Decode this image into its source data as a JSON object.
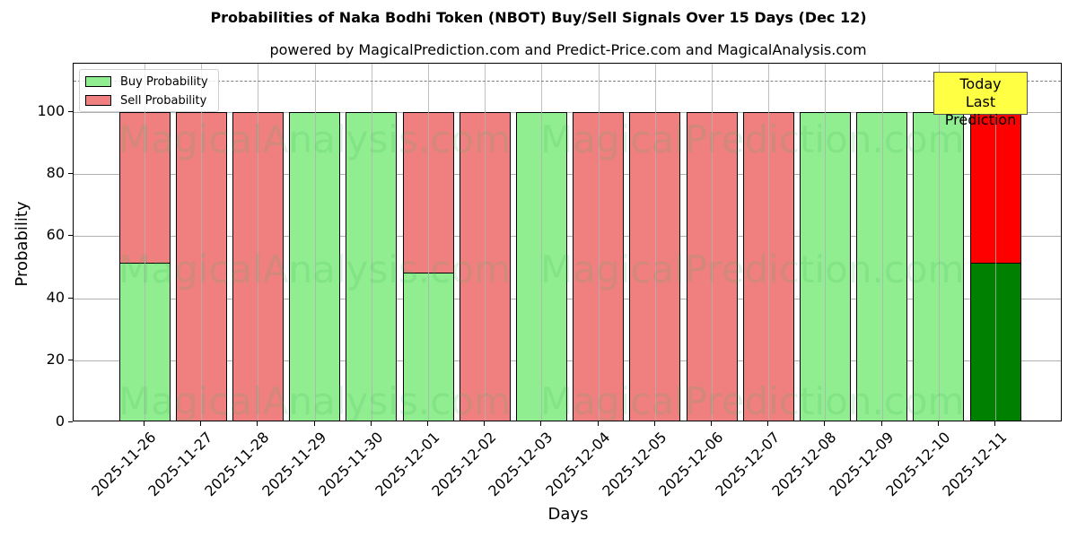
{
  "title": "Probabilities of Naka Bodhi Token (NBOT) Buy/Sell Signals Over 15 Days (Dec 12)",
  "subtitle": "powered by MagicalPrediction.com and Predict-Price.com and MagicalAnalysis.com",
  "watermarks": [
    "MagicalAnalysis.com",
    "MagicalPrediction.com"
  ],
  "annotation": {
    "line1": "Today",
    "line2": "Last Prediction"
  },
  "colors": {
    "buy": "#90ee90",
    "sell": "#f08080",
    "buy_today": "#008000",
    "sell_today": "#ff0000",
    "annotation_bg": "#ffff44"
  },
  "chart_data": {
    "type": "bar",
    "stacked": true,
    "title": "Probabilities of Naka Bodhi Token (NBOT) Buy/Sell Signals Over 15 Days (Dec 12)",
    "subtitle": "powered by MagicalPrediction.com and Predict-Price.com and MagicalAnalysis.com",
    "xlabel": "Days",
    "ylabel": "Probability",
    "ylim": [
      0,
      115.6
    ],
    "yticks": [
      0,
      20,
      40,
      60,
      80,
      100
    ],
    "grid": true,
    "legend_position": "upper left",
    "reference_line": {
      "y": 110,
      "style": "dashed",
      "color": "#808080"
    },
    "categories": [
      "2025-11-26",
      "2025-11-27",
      "2025-11-28",
      "2025-11-29",
      "2025-11-30",
      "2025-12-01",
      "2025-12-02",
      "2025-12-03",
      "2025-12-04",
      "2025-12-05",
      "2025-12-06",
      "2025-12-07",
      "2025-12-08",
      "2025-12-09",
      "2025-12-10",
      "2025-12-11"
    ],
    "series": [
      {
        "name": "Buy Probability",
        "values": [
          51.3,
          0,
          0,
          100,
          100,
          48.4,
          0,
          100,
          0,
          0,
          0,
          0,
          100,
          100,
          100,
          51.3
        ]
      },
      {
        "name": "Sell Probability",
        "values": [
          48.7,
          100,
          100,
          0,
          0,
          51.6,
          100,
          0,
          100,
          100,
          100,
          100,
          0,
          0,
          0,
          48.7
        ]
      }
    ],
    "annotations": [
      {
        "text": "Today\nLast Prediction",
        "x": "2025-12-11"
      }
    ]
  }
}
